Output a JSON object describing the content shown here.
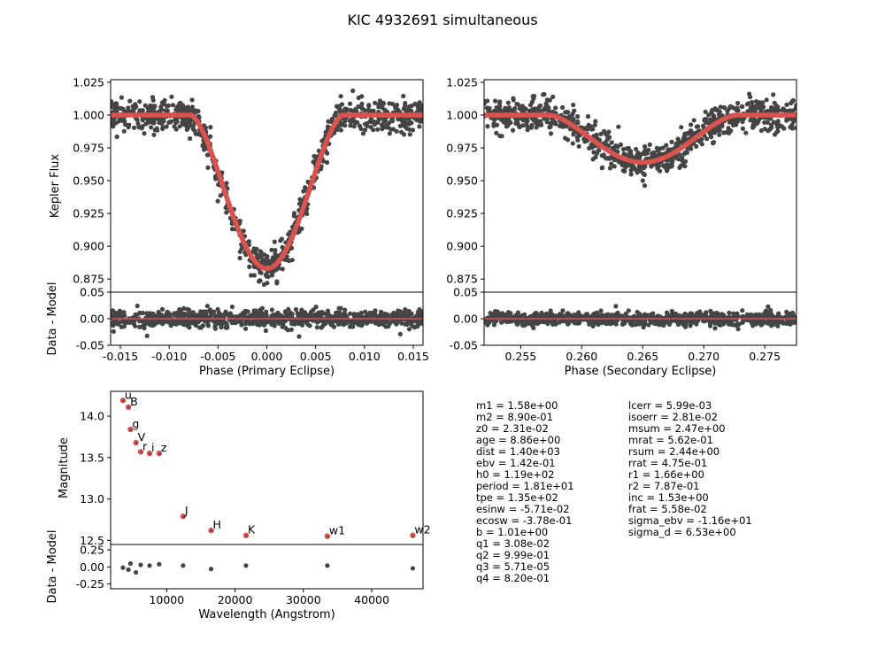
{
  "title": "KIC 4932691 simultaneous",
  "colors": {
    "data": "#444444",
    "model": "#d9534f",
    "axis": "#000000"
  },
  "chart_data": [
    {
      "id": "primary",
      "type": "scatter",
      "xlabel": "Phase (Primary Eclipse)",
      "ylabel": "Kepler Flux",
      "resid_ylabel": "Data - Model",
      "xlim": [
        -0.016,
        0.016
      ],
      "ylim": [
        0.865,
        1.027
      ],
      "resid_ylim": [
        -0.05,
        0.05
      ],
      "xticks": [
        "-0.015",
        "-0.010",
        "-0.005",
        "0.000",
        "0.005",
        "0.010",
        "0.015"
      ],
      "xtick_values": [
        -0.015,
        -0.01,
        -0.005,
        0.0,
        0.005,
        0.01,
        0.015
      ],
      "yticks": [
        "0.875",
        "0.900",
        "0.925",
        "0.950",
        "0.975",
        "1.000",
        "1.025"
      ],
      "ytick_values": [
        0.875,
        0.9,
        0.925,
        0.95,
        0.975,
        1.0,
        1.025
      ],
      "resid_yticks": [
        "-0.05",
        "0.00",
        "0.05"
      ],
      "resid_ytick_values": [
        -0.05,
        0.0,
        0.05
      ],
      "model": {
        "center": 0.0,
        "depth": 0.117,
        "half_width": 0.0078,
        "baseline": 1.0
      },
      "scatter_sigma": 0.006,
      "resid_sigma": 0.008
    },
    {
      "id": "secondary",
      "type": "scatter",
      "xlabel": "Phase (Secondary Eclipse)",
      "ylabel": "",
      "xlim": [
        0.252,
        0.2776
      ],
      "ylim": [
        0.865,
        1.027
      ],
      "resid_ylim": [
        -0.05,
        0.05
      ],
      "xticks": [
        "0.255",
        "0.260",
        "0.265",
        "0.270",
        "0.275"
      ],
      "xtick_values": [
        0.255,
        0.26,
        0.265,
        0.27,
        0.275
      ],
      "yticks": [
        "0.875",
        "0.900",
        "0.925",
        "0.950",
        "0.975",
        "1.000",
        "1.025"
      ],
      "ytick_values": [
        0.875,
        0.9,
        0.925,
        0.95,
        0.975,
        1.0,
        1.025
      ],
      "resid_yticks": [
        "-0.05",
        "0.00",
        "0.05"
      ],
      "resid_ytick_values": [
        -0.05,
        0.0,
        0.05
      ],
      "model": {
        "center": 0.265,
        "depth": 0.036,
        "half_width": 0.0077,
        "baseline": 1.0
      },
      "scatter_sigma": 0.006,
      "resid_sigma": 0.006
    },
    {
      "id": "sed",
      "type": "scatter",
      "xlabel": "Wavelength (Angstrom)",
      "ylabel": "Magnitude",
      "resid_ylabel": "Data - Model",
      "xlim": [
        1800,
        47500
      ],
      "ylim": [
        14.3,
        12.45
      ],
      "resid_ylim": [
        -0.32,
        0.33
      ],
      "xticks": [
        "10000",
        "20000",
        "30000",
        "40000"
      ],
      "xtick_values": [
        10000,
        20000,
        30000,
        40000
      ],
      "yticks": [
        "12.5",
        "13.0",
        "13.5",
        "14.0"
      ],
      "ytick_values": [
        12.5,
        13.0,
        13.5,
        14.0
      ],
      "resid_yticks": [
        "-0.25",
        "0.00",
        "0.25"
      ],
      "resid_ytick_values": [
        -0.25,
        0.0,
        0.25
      ],
      "points": [
        {
          "band": "u",
          "x": 3600,
          "y": 14.19,
          "r": -0.01
        },
        {
          "band": "B",
          "x": 4400,
          "y": 14.11,
          "r": -0.04
        },
        {
          "band": "g",
          "x": 4700,
          "y": 13.84,
          "r": 0.05
        },
        {
          "band": "V",
          "x": 5500,
          "y": 13.68,
          "r": -0.08
        },
        {
          "band": "r",
          "x": 6200,
          "y": 13.57,
          "r": 0.03
        },
        {
          "band": "i",
          "x": 7500,
          "y": 13.55,
          "r": 0.02
        },
        {
          "band": "z",
          "x": 8900,
          "y": 13.55,
          "r": 0.04
        },
        {
          "band": "J",
          "x": 12400,
          "y": 12.79,
          "r": 0.02
        },
        {
          "band": "H",
          "x": 16500,
          "y": 12.62,
          "r": -0.03
        },
        {
          "band": "K",
          "x": 21600,
          "y": 12.56,
          "r": 0.02
        },
        {
          "band": "w1",
          "x": 33500,
          "y": 12.55,
          "r": 0.02
        },
        {
          "band": "w2",
          "x": 46000,
          "y": 12.56,
          "r": -0.02
        }
      ],
      "extra_resid_points": [
        {
          "x": 4700,
          "r": 0.05
        },
        {
          "x": 5500,
          "r": -0.08
        }
      ]
    }
  ],
  "params_left": [
    "m1 = 1.58e+00",
    "m2 = 8.90e-01",
    "z0 = 2.31e-02",
    "age = 8.86e+00",
    "dist = 1.40e+03",
    "ebv = 1.42e-01",
    "h0 = 1.19e+02",
    "period = 1.81e+01",
    "tpe = 1.35e+02",
    "esinw = -5.71e-02",
    "ecosw = -3.78e-01",
    "b = 1.01e+00",
    "q1 = 3.08e-02",
    "q2 = 9.99e-01",
    "q3 = 5.71e-05",
    "q4 = 8.20e-01"
  ],
  "params_right": [
    "lcerr = 5.99e-03",
    "isoerr = 2.81e-02",
    "msum = 2.47e+00",
    "mrat = 5.62e-01",
    "rsum = 2.44e+00",
    "rrat = 4.75e-01",
    "r1 = 1.66e+00",
    "r2 = 7.87e-01",
    "inc = 1.53e+00",
    "frat = 5.58e-02",
    "sigma_ebv = -1.16e+01",
    "sigma_d = 6.53e+00"
  ]
}
